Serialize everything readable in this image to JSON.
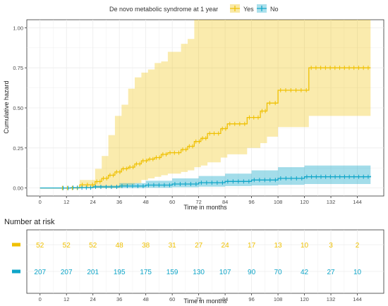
{
  "colors": {
    "yes": "#EFC000",
    "no": "#0EA5C8",
    "grid": "#EBEBEB",
    "axis_text": "#4D4D4D"
  },
  "legend": {
    "title": "De novo metabolic syndrome at 1 year",
    "items": [
      "Yes",
      "No"
    ],
    "position": "top"
  },
  "chart_data": [
    {
      "type": "line",
      "subtype": "step",
      "xlabel": "Time in months",
      "ylabel": "Cumulative hazard",
      "xlim": [
        -6,
        156
      ],
      "ylim": [
        -0.05,
        1.05
      ],
      "xticks": [
        0,
        12,
        24,
        36,
        48,
        60,
        72,
        84,
        96,
        108,
        120,
        132,
        144
      ],
      "yticks": [
        "0.00",
        "0.25",
        "0.50",
        "0.75",
        "1.00"
      ],
      "ytick_values": [
        0,
        0.25,
        0.5,
        0.75,
        1.0
      ],
      "grid": true,
      "series": [
        {
          "name": "Yes",
          "color": "#EFC000",
          "x": [
            0,
            18,
            25,
            28,
            31,
            34,
            37,
            40,
            43,
            46,
            49,
            52,
            55,
            58,
            64,
            67,
            70,
            73,
            76,
            82,
            85,
            94,
            100,
            103,
            108,
            122,
            150
          ],
          "y": [
            0,
            0.02,
            0.04,
            0.06,
            0.08,
            0.1,
            0.12,
            0.13,
            0.15,
            0.17,
            0.18,
            0.19,
            0.21,
            0.22,
            0.24,
            0.26,
            0.29,
            0.31,
            0.34,
            0.37,
            0.4,
            0.44,
            0.48,
            0.53,
            0.61,
            0.75,
            0.75
          ],
          "ci_upper": [
            0,
            0.05,
            0.12,
            0.2,
            0.33,
            0.45,
            0.52,
            0.62,
            0.69,
            0.72,
            0.74,
            0.78,
            0.79,
            0.85,
            0.9,
            0.93,
            1.05,
            1.05,
            1.05,
            1.05,
            1.05,
            1.05,
            1.05,
            1.05,
            1.05,
            1.05,
            1.05
          ],
          "ci_lower": [
            0,
            0,
            0,
            0,
            0,
            0,
            0.01,
            0.02,
            0.03,
            0.05,
            0.06,
            0.07,
            0.08,
            0.09,
            0.1,
            0.11,
            0.13,
            0.14,
            0.16,
            0.19,
            0.21,
            0.25,
            0.28,
            0.32,
            0.38,
            0.45,
            0.45
          ]
        },
        {
          "name": "No",
          "color": "#0EA5C8",
          "x": [
            0,
            14,
            24,
            36,
            48,
            60,
            72,
            84,
            96,
            108,
            120,
            150
          ],
          "y": [
            0,
            0.002,
            0.007,
            0.012,
            0.018,
            0.025,
            0.033,
            0.041,
            0.05,
            0.06,
            0.07,
            0.075
          ],
          "ci_upper": [
            0,
            0.005,
            0.015,
            0.03,
            0.045,
            0.06,
            0.075,
            0.09,
            0.11,
            0.13,
            0.14,
            0.14
          ],
          "ci_lower": [
            0,
            0,
            0,
            0,
            0.002,
            0.005,
            0.008,
            0.012,
            0.016,
            0.02,
            0.025,
            0.03
          ]
        }
      ]
    },
    {
      "type": "table",
      "title": "Number at risk",
      "xlabel": "Time in months",
      "xticks": [
        0,
        12,
        24,
        36,
        48,
        60,
        72,
        84,
        96,
        108,
        120,
        132,
        144
      ],
      "rows": [
        {
          "name": "Yes",
          "color": "#EFC000",
          "values": [
            52,
            52,
            52,
            48,
            38,
            31,
            27,
            24,
            17,
            13,
            10,
            3,
            2
          ]
        },
        {
          "name": "No",
          "color": "#0EA5C8",
          "values": [
            207,
            207,
            201,
            195,
            175,
            159,
            130,
            107,
            90,
            70,
            42,
            27,
            10
          ]
        }
      ]
    }
  ]
}
